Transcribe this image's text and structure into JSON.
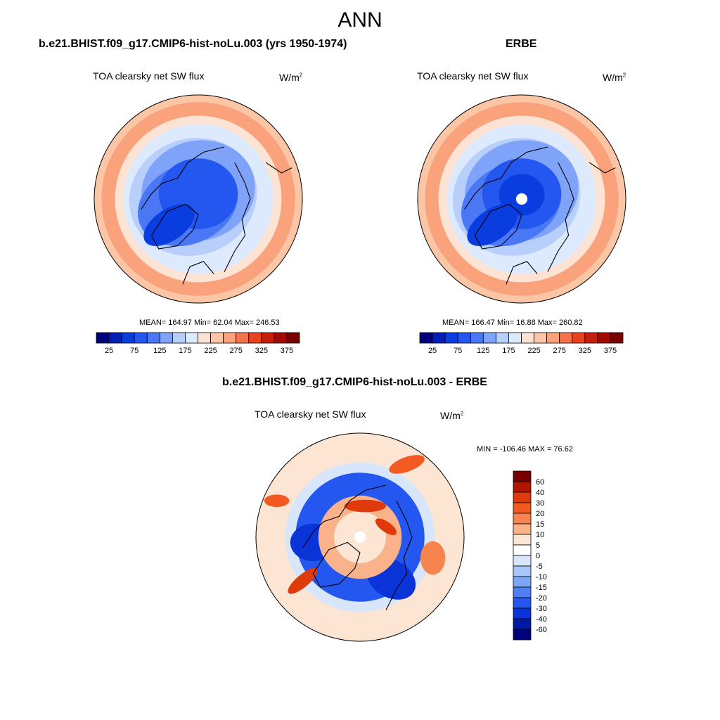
{
  "figure": {
    "title": "ANN",
    "panel_left": {
      "case_title": "b.e21.BHIST.f09_g17.CMIP6-hist-noLu.003 (yrs 1950-1974)",
      "variable": "TOA clearsky net SW flux",
      "units_base": "W/m",
      "units_exp": "2",
      "stats": "MEAN= 164.97  Min=  62.04  Max= 246.53"
    },
    "panel_right": {
      "case_title": "ERBE",
      "variable": "TOA clearsky net SW flux",
      "units_base": "W/m",
      "units_exp": "2",
      "stats": "MEAN= 166.47  Min=  16.88  Max= 260.82"
    },
    "panel_diff": {
      "case_title": "b.e21.BHIST.f09_g17.CMIP6-hist-noLu.003 - ERBE",
      "variable": "TOA clearsky net SW flux",
      "units_base": "W/m",
      "units_exp": "2",
      "stats": "MIN = -106.46 MAX =  76.62"
    }
  },
  "chart_data": [
    {
      "type": "heatmap",
      "projection": "north-polar-stereographic",
      "title": "b.e21.BHIST.f09_g17.CMIP6-hist-noLu.003 (yrs 1950-1974)",
      "variable": "TOA clearsky net SW flux",
      "units": "W/m2",
      "mean": 164.97,
      "min": 62.04,
      "max": 246.53,
      "colorbar": {
        "orientation": "horizontal",
        "levels": [
          25,
          50,
          75,
          100,
          125,
          150,
          175,
          200,
          225,
          250,
          275,
          300,
          325,
          350,
          375
        ],
        "tick_labels": [
          "25",
          "75",
          "125",
          "175",
          "225",
          "275",
          "325",
          "375"
        ],
        "colors": [
          "#00007d",
          "#001fb3",
          "#0a3de0",
          "#2456f0",
          "#4a78f5",
          "#7fa3f8",
          "#b8cffb",
          "#dde9fc",
          "#fde3d3",
          "#fac6a5",
          "#f9a27b",
          "#f3734b",
          "#e8431f",
          "#c6200a",
          "#a20a00",
          "#7a0000"
        ]
      }
    },
    {
      "type": "heatmap",
      "projection": "north-polar-stereographic",
      "title": "ERBE",
      "variable": "TOA clearsky net SW flux",
      "units": "W/m2",
      "mean": 166.47,
      "min": 16.88,
      "max": 260.82,
      "colorbar": {
        "orientation": "horizontal",
        "levels": [
          25,
          50,
          75,
          100,
          125,
          150,
          175,
          200,
          225,
          250,
          275,
          300,
          325,
          350,
          375
        ],
        "tick_labels": [
          "25",
          "75",
          "125",
          "175",
          "225",
          "275",
          "325",
          "375"
        ],
        "colors": [
          "#00007d",
          "#001fb3",
          "#0a3de0",
          "#2456f0",
          "#4a78f5",
          "#7fa3f8",
          "#b8cffb",
          "#dde9fc",
          "#fde3d3",
          "#fac6a5",
          "#f9a27b",
          "#f3734b",
          "#e8431f",
          "#c6200a",
          "#a20a00",
          "#7a0000"
        ]
      }
    },
    {
      "type": "heatmap",
      "projection": "north-polar-stereographic",
      "title": "b.e21.BHIST.f09_g17.CMIP6-hist-noLu.003 - ERBE",
      "variable": "TOA clearsky net SW flux",
      "units": "W/m2",
      "min": -106.46,
      "max": 76.62,
      "colorbar": {
        "orientation": "vertical",
        "levels": [
          60,
          40,
          30,
          20,
          15,
          10,
          5,
          0,
          -5,
          -10,
          -15,
          -20,
          -30,
          -40,
          -60
        ],
        "tick_labels": [
          "60",
          "40",
          "30",
          "20",
          "15",
          "10",
          "5",
          "0",
          "-5",
          "-10",
          "-15",
          "-20",
          "-30",
          "-40",
          "-60"
        ],
        "colors": [
          "#7a0000",
          "#b01500",
          "#de3a0c",
          "#f25a22",
          "#f7844f",
          "#fab28a",
          "#fde5d4",
          "#ffffff",
          "#d7e6fb",
          "#a9c6fa",
          "#7ea6f7",
          "#4f7ff2",
          "#2456f0",
          "#0b34d8",
          "#001aa6",
          "#00007d"
        ]
      }
    }
  ]
}
